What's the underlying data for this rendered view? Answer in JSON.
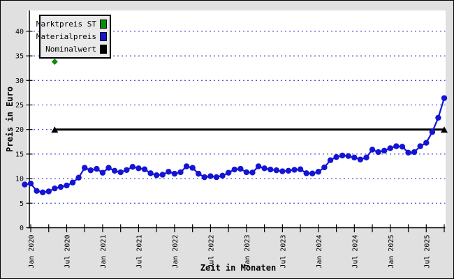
{
  "chart_data": {
    "type": "line",
    "title": "",
    "xlabel": "Zeit in Monaten",
    "ylabel": "Preis in Euro",
    "ylim": [
      0,
      44
    ],
    "y_ticks": [
      0,
      5,
      10,
      15,
      20,
      25,
      30,
      35,
      40
    ],
    "grid": "dotted horizontal lines at each y tick",
    "legend_position": "top-left",
    "x_axis": {
      "unit": "months",
      "tick_labels": [
        "Jan 2020",
        "Jul 2020",
        "Jan 2021",
        "Jul 2021",
        "Jan 2022",
        "Jul 2022",
        "Jan 2023",
        "Jul 2023",
        "Jan 2024",
        "Jul 2024",
        "Jan 2025",
        "Jul 2025"
      ],
      "minor_tick_every_months": 3,
      "label_every_months": 6,
      "last_tick_month_offset": 69
    },
    "series": [
      {
        "name": "Marktpreis ST",
        "color": "#0b8a0b",
        "marker": "diamond",
        "kind": "points",
        "points": [
          {
            "month_offset": 4,
            "month": "Mai 2020",
            "value": 33.8
          }
        ]
      },
      {
        "name": "Materialpreis",
        "color": "#1414d4",
        "marker": "circle",
        "kind": "monthly",
        "start_month": "Dez 2019",
        "start_month_offset": -1,
        "values": [
          8.8,
          9.0,
          7.5,
          7.2,
          7.4,
          8.0,
          8.3,
          8.6,
          9.2,
          10.2,
          12.2,
          11.7,
          12.0,
          11.2,
          12.2,
          11.6,
          11.3,
          11.75,
          12.4,
          12.1,
          11.9,
          11.1,
          10.7,
          10.8,
          11.4,
          11.0,
          11.3,
          12.5,
          12.2,
          11.0,
          10.3,
          10.5,
          10.3,
          10.6,
          11.2,
          11.85,
          12.0,
          11.3,
          11.25,
          12.5,
          12.1,
          11.85,
          11.7,
          11.5,
          11.6,
          11.8,
          11.9,
          11.1,
          11.05,
          11.4,
          12.3,
          13.75,
          14.4,
          14.7,
          14.6,
          14.3,
          13.9,
          14.3,
          15.9,
          15.4,
          15.7,
          16.2,
          16.6,
          16.5,
          15.3,
          15.4,
          16.6,
          17.3,
          19.5,
          22.4,
          26.4
        ]
      },
      {
        "name": "Nominalwert",
        "color": "#000000",
        "marker": "triangle",
        "kind": "hline",
        "value": 20,
        "from_month_offset": 4,
        "to_month_offset": 69,
        "from": "Mai 2020",
        "to": "Okt 2025"
      }
    ]
  },
  "legend_items": [
    {
      "label": "Marktpreis ST",
      "color": "#0b8a0b"
    },
    {
      "label": "Materialpreis",
      "color": "#1414d4"
    },
    {
      "label": "Nominalwert",
      "color": "#000000"
    }
  ],
  "colors": {
    "background": "#e0e0e0",
    "plot_background": "#ffffff",
    "gridline": "#2222cc",
    "axis": "#000000",
    "legend_background": "#e9e9e9"
  }
}
